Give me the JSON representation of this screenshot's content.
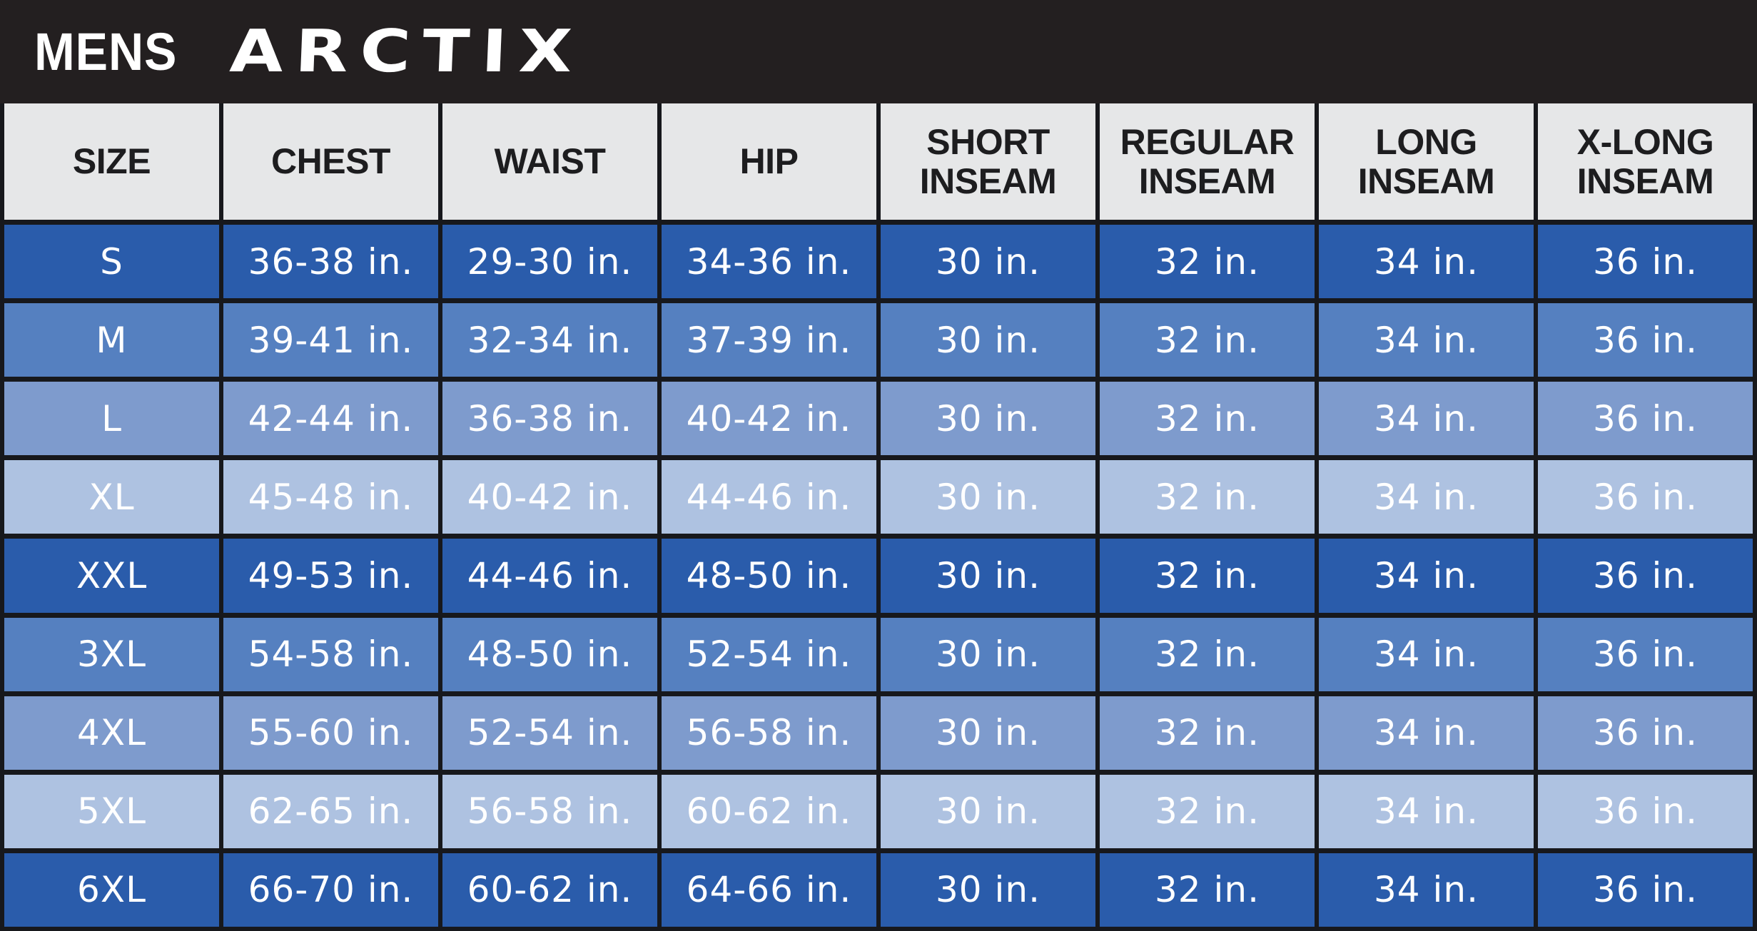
{
  "banner": {
    "category": "MENS",
    "brand": "ARCTIX"
  },
  "row_shades": [
    "dark",
    "medium",
    "mediumlight",
    "light",
    "dark",
    "medium",
    "mediumlight",
    "light",
    "dark"
  ],
  "colors": {
    "bannerBg": "#231f20",
    "headerBg": "#e6e7e8",
    "headerText": "#1d1d1f",
    "gridLine": "#17181c",
    "cellText": "#ffffff",
    "dark": "#2a5cab",
    "medium": "#5580c0",
    "mediumlight": "#7e9bcd",
    "light": "#aec2e1"
  },
  "chart_data": {
    "type": "table",
    "title": "MENS ARCTIX size chart",
    "columns": [
      "SIZE",
      "CHEST",
      "WAIST",
      "HIP",
      "SHORT\nINSEAM",
      "REGULAR\nINSEAM",
      "LONG\nINSEAM",
      "X-LONG\nINSEAM"
    ],
    "rows": [
      [
        "S",
        "36-38 in.",
        "29-30 in.",
        "34-36 in.",
        "30 in.",
        "32 in.",
        "34 in.",
        "36 in."
      ],
      [
        "M",
        "39-41 in.",
        "32-34 in.",
        "37-39 in.",
        "30 in.",
        "32 in.",
        "34 in.",
        "36 in."
      ],
      [
        "L",
        "42-44 in.",
        "36-38 in.",
        "40-42 in.",
        "30 in.",
        "32 in.",
        "34 in.",
        "36 in."
      ],
      [
        "XL",
        "45-48 in.",
        "40-42 in.",
        "44-46 in.",
        "30 in.",
        "32 in.",
        "34 in.",
        "36 in."
      ],
      [
        "XXL",
        "49-53 in.",
        "44-46 in.",
        "48-50 in.",
        "30 in.",
        "32 in.",
        "34 in.",
        "36 in."
      ],
      [
        "3XL",
        "54-58 in.",
        "48-50 in.",
        "52-54 in.",
        "30 in.",
        "32 in.",
        "34 in.",
        "36 in."
      ],
      [
        "4XL",
        "55-60 in.",
        "52-54 in.",
        "56-58 in.",
        "30 in.",
        "32 in.",
        "34 in.",
        "36 in."
      ],
      [
        "5XL",
        "62-65 in.",
        "56-58 in.",
        "60-62 in.",
        "30 in.",
        "32 in.",
        "34 in.",
        "36 in."
      ],
      [
        "6XL",
        "66-70 in.",
        "60-62 in.",
        "64-66 in.",
        "30 in.",
        "32 in.",
        "34 in.",
        "36 in."
      ]
    ]
  }
}
